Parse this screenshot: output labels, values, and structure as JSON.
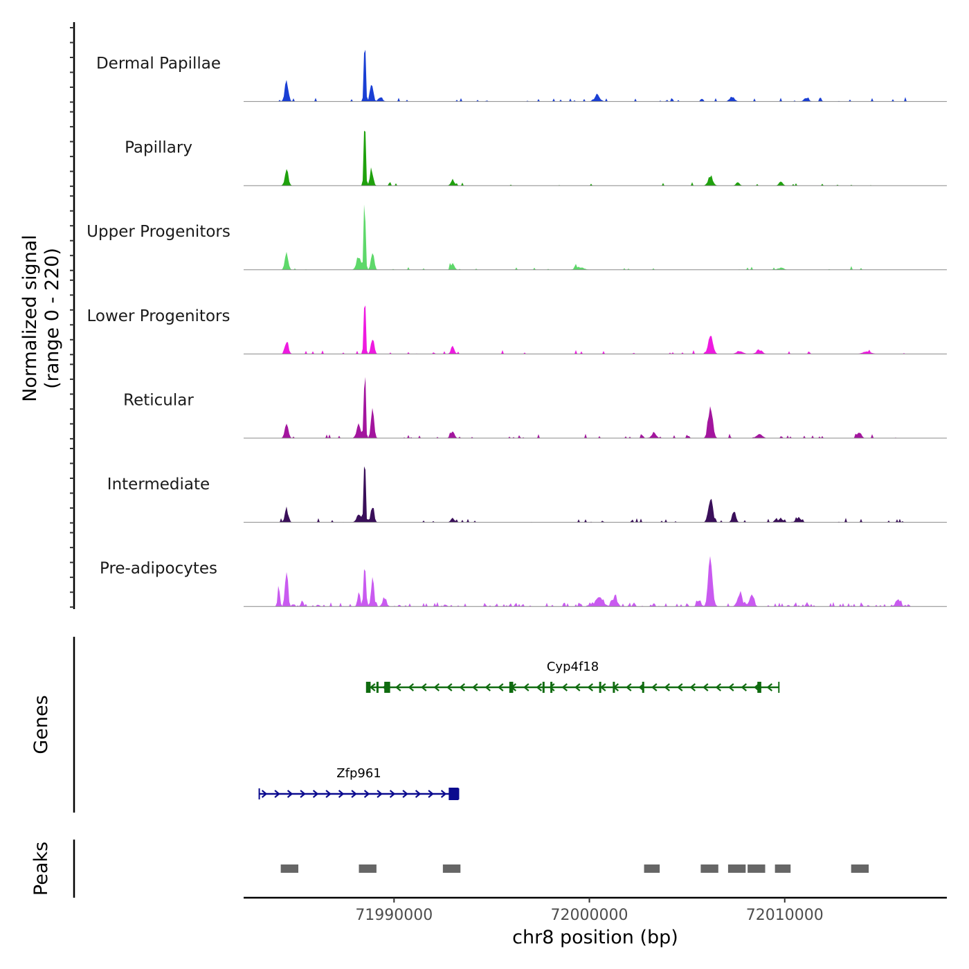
{
  "chart_data": {
    "type": "area",
    "title": "",
    "y_axis_label": [
      "Normalized signal",
      "(range 0 - 220)"
    ],
    "y_range": [
      0,
      220
    ],
    "x_axis_label": "chr8 position (bp)",
    "x_range": [
      71982300,
      72018300
    ],
    "x_ticks": [
      71990000,
      72000000,
      72010000
    ],
    "x_tick_labels": [
      "71990000",
      "72000000",
      "72010000"
    ],
    "tracks": [
      {
        "name": "Dermal Papillae",
        "color": "#1a3fd4",
        "peaks": [
          [
            71984500,
            60,
            90
          ],
          [
            71988500,
            220,
            45
          ],
          [
            71988850,
            55,
            80
          ],
          [
            71989300,
            15,
            100
          ],
          [
            72000400,
            18,
            140
          ],
          [
            72007300,
            14,
            120
          ],
          [
            72011100,
            10,
            120
          ]
        ],
        "noise": 0.1
      },
      {
        "name": "Papillary",
        "color": "#1fa10d",
        "peaks": [
          [
            71984500,
            45,
            90
          ],
          [
            71988500,
            220,
            45
          ],
          [
            71988850,
            50,
            80
          ],
          [
            71993000,
            18,
            90
          ],
          [
            72006200,
            30,
            120
          ],
          [
            72007600,
            10,
            90
          ],
          [
            72009800,
            12,
            90
          ]
        ],
        "noise": 0.05
      },
      {
        "name": "Upper Progenitors",
        "color": "#5ed86a",
        "peaks": [
          [
            71984500,
            45,
            90
          ],
          [
            71988200,
            40,
            120
          ],
          [
            71988500,
            220,
            45
          ],
          [
            71988900,
            50,
            80
          ],
          [
            71993000,
            22,
            90
          ],
          [
            71999500,
            8,
            200
          ],
          [
            72009800,
            6,
            150
          ]
        ],
        "noise": 0.05
      },
      {
        "name": "Lower Progenitors",
        "color": "#ee1ae0",
        "peaks": [
          [
            71984500,
            40,
            90
          ],
          [
            71988500,
            220,
            45
          ],
          [
            71988900,
            45,
            80
          ],
          [
            71993000,
            22,
            90
          ],
          [
            72006200,
            55,
            120
          ],
          [
            72007700,
            10,
            150
          ],
          [
            72008700,
            12,
            150
          ],
          [
            72014200,
            8,
            200
          ]
        ],
        "noise": 0.08
      },
      {
        "name": "Reticular",
        "color": "#a3159e",
        "peaks": [
          [
            71984500,
            45,
            90
          ],
          [
            71988200,
            40,
            110
          ],
          [
            71988500,
            220,
            45
          ],
          [
            71988900,
            80,
            80
          ],
          [
            71993000,
            18,
            90
          ],
          [
            72003300,
            18,
            110
          ],
          [
            72006200,
            95,
            110
          ],
          [
            72008700,
            12,
            150
          ],
          [
            72013800,
            18,
            110
          ]
        ],
        "noise": 0.1
      },
      {
        "name": "Intermediate",
        "color": "#3a0f5a",
        "peaks": [
          [
            71984500,
            40,
            90
          ],
          [
            71988200,
            28,
            110
          ],
          [
            71988500,
            205,
            45
          ],
          [
            71988900,
            50,
            80
          ],
          [
            71993000,
            12,
            90
          ],
          [
            72006200,
            75,
            110
          ],
          [
            72007400,
            35,
            90
          ],
          [
            72009800,
            10,
            120
          ],
          [
            72010700,
            15,
            120
          ]
        ],
        "noise": 0.1
      },
      {
        "name": "Pre-adipocytes",
        "color": "#c95af0",
        "peaks": [
          [
            71984100,
            50,
            60
          ],
          [
            71984500,
            110,
            70
          ],
          [
            71985300,
            20,
            60
          ],
          [
            71988200,
            35,
            70
          ],
          [
            71988500,
            120,
            60
          ],
          [
            71988900,
            90,
            70
          ],
          [
            71989500,
            30,
            80
          ],
          [
            72000500,
            25,
            200
          ],
          [
            72001300,
            30,
            120
          ],
          [
            72005600,
            15,
            100
          ],
          [
            72006200,
            130,
            110
          ],
          [
            72007700,
            40,
            120
          ],
          [
            72008300,
            35,
            110
          ],
          [
            72015800,
            20,
            120
          ]
        ],
        "noise": 0.35
      }
    ],
    "genes": [
      {
        "name": "Cyp4f18",
        "color": "#0f6b0f",
        "strand": "-",
        "start": 71988600,
        "end": 72009700,
        "exons": [
          [
            71988600,
            71988800
          ],
          [
            71989100,
            71989200
          ],
          [
            71989500,
            71989800
          ],
          [
            71995900,
            71996100
          ],
          [
            71997600,
            71997700
          ],
          [
            71998000,
            71998100
          ],
          [
            72000500,
            72000600
          ],
          [
            72001200,
            72001300
          ],
          [
            72002700,
            72002800
          ],
          [
            72008600,
            72008800
          ]
        ]
      },
      {
        "name": "Zfp961",
        "color": "#0b0b8f",
        "strand": "+",
        "start": 71983100,
        "end": 71993300,
        "exons": [
          [
            71992800,
            71993300
          ]
        ]
      }
    ],
    "peaks_track": {
      "label": "Peaks",
      "color": "#666666",
      "regions": [
        [
          71984200,
          71985100
        ],
        [
          71988200,
          71989100
        ],
        [
          71992500,
          71993400
        ],
        [
          72002800,
          72003600
        ],
        [
          72005700,
          72006600
        ],
        [
          72007100,
          72008000
        ],
        [
          72008100,
          72009000
        ],
        [
          72009500,
          72010300
        ],
        [
          72013400,
          72014300
        ]
      ]
    },
    "panel_labels": {
      "genes": "Genes",
      "peaks": "Peaks"
    }
  }
}
